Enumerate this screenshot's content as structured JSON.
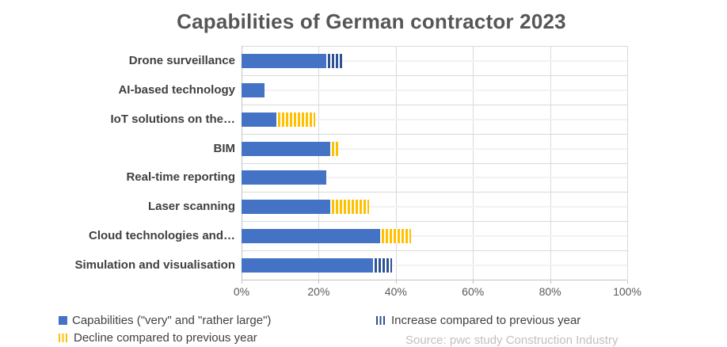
{
  "title": "Capabilities of German contractor 2023",
  "source_note": "Source: pwc study Construction Industry",
  "colors": {
    "bar_blue": "#4472C4",
    "stripe_blue": "#2E5395",
    "stripe_yellow": "#FFC000",
    "gridline": "#D9D9D9",
    "axis_line": "#C2C2C2",
    "title_text": "#565656",
    "label_text": "#404040",
    "axis_text": "#595959",
    "source_text": "#C0C0C0",
    "remainder_line": "#F2F2F2"
  },
  "chart_data": {
    "type": "bar",
    "orientation": "horizontal",
    "title": "Capabilities of German contractor 2023",
    "categories": [
      "Drone surveillance",
      "AI-based technology",
      "IoT solutions on the…",
      "BIM",
      "Real-time reporting",
      "Laser scanning",
      "Cloud technologies and…",
      "Simulation and visualisation"
    ],
    "series": [
      {
        "name": "Capabilities (\"very\" and \"rather large\")",
        "style": "solid",
        "values": [
          22,
          6,
          9,
          23,
          22,
          23,
          36,
          34
        ]
      },
      {
        "name": "Increase compared to previous year",
        "style": "stripeb",
        "values": [
          4,
          0,
          0,
          0,
          0,
          0,
          0,
          5
        ]
      },
      {
        "name": "Decline compared to previous year",
        "style": "stripey",
        "values": [
          0,
          0,
          10,
          2,
          0,
          10,
          8,
          0
        ]
      }
    ],
    "x_axis": {
      "ticks": [
        "0%",
        "20%",
        "40%",
        "60%",
        "80%",
        "100%"
      ],
      "min": 0,
      "max": 100,
      "grid": true
    },
    "legend_position": "bottom"
  }
}
